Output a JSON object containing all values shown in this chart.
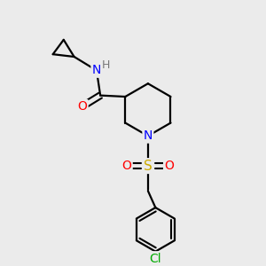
{
  "background_color": "#ebebeb",
  "bond_color": "#000000",
  "atom_colors": {
    "N": "#0000ff",
    "O": "#ff0000",
    "S": "#ccaa00",
    "Cl": "#00aa00",
    "H": "#777777",
    "C": "#000000"
  },
  "font_size": 10,
  "fig_size": [
    3.0,
    3.0
  ],
  "dpi": 100
}
